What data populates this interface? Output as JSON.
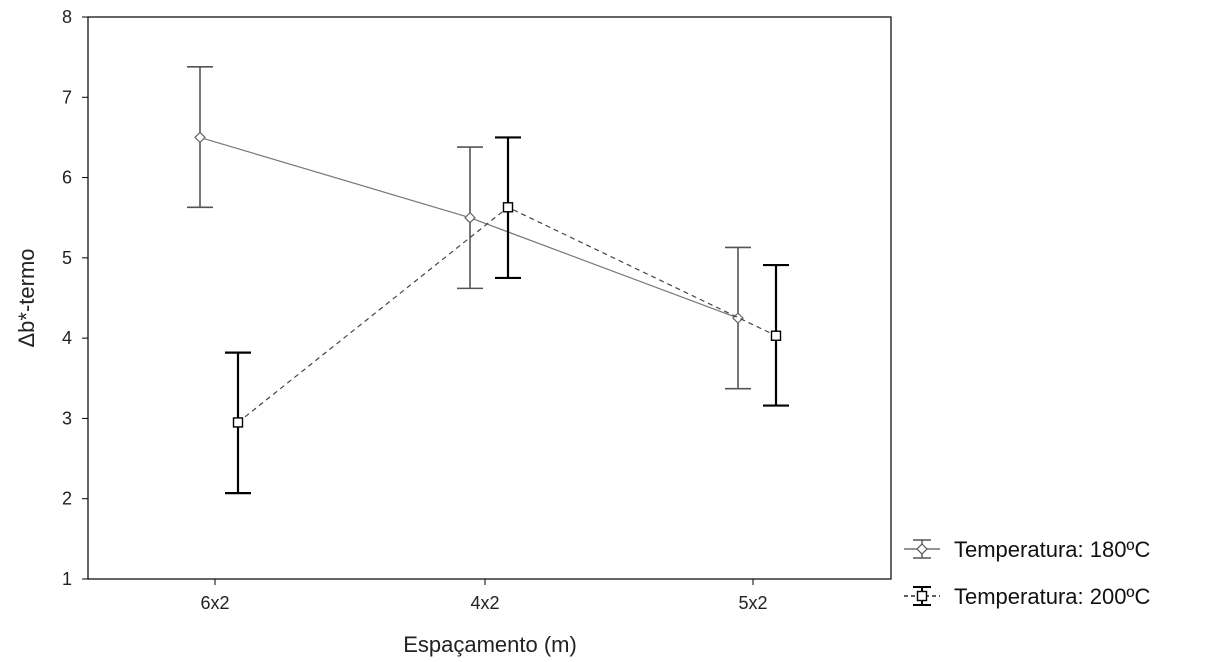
{
  "chart_data": {
    "type": "line",
    "xlabel": "Espaçamento (m)",
    "ylabel": "Δb*-termo",
    "categories": [
      "6x2",
      "4x2",
      "5x2"
    ],
    "ylim": [
      1,
      8
    ],
    "yticks": [
      "1",
      "2",
      "3",
      "4",
      "5",
      "6",
      "7",
      "8"
    ],
    "grid": false,
    "legend_position": "bottom-right, outside plot",
    "series": [
      {
        "name": "Temperatura: 180ºC",
        "marker": "diamond",
        "line_style": "solid",
        "color": "#666666",
        "values": [
          6.5,
          5.5,
          4.25
        ],
        "err_low": [
          5.63,
          4.62,
          3.37
        ],
        "err_high": [
          7.38,
          6.38,
          5.13
        ]
      },
      {
        "name": "Temperatura: 200ºC",
        "marker": "square",
        "line_style": "dashed",
        "color": "#000000",
        "values": [
          2.95,
          5.63,
          4.03
        ],
        "err_low": [
          2.07,
          4.75,
          3.16
        ],
        "err_high": [
          3.82,
          6.5,
          4.91
        ]
      }
    ]
  }
}
